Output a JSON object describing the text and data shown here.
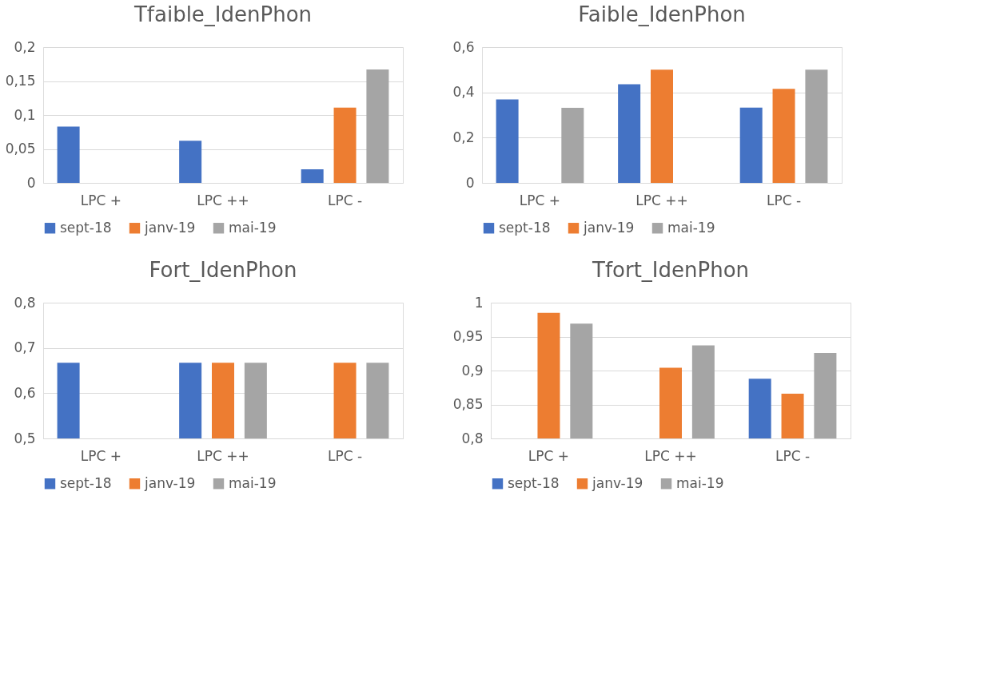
{
  "chart_data": [
    {
      "type": "bar",
      "title": "Tfaible_IdenPhon",
      "categories": [
        "LPC +",
        "LPC ++",
        "LPC -"
      ],
      "series": [
        {
          "name": "sept-18",
          "color": "#4472c4",
          "values": [
            0.083,
            0.062,
            0.02
          ]
        },
        {
          "name": "janv-19",
          "color": "#ed7d31",
          "values": [
            null,
            null,
            0.111
          ]
        },
        {
          "name": "mai-19",
          "color": "#a5a5a5",
          "values": [
            null,
            null,
            0.167
          ]
        }
      ],
      "ylim": [
        0,
        0.2
      ],
      "yticks": [
        {
          "value": 0,
          "label": "0"
        },
        {
          "value": 0.05,
          "label": "0,05"
        },
        {
          "value": 0.1,
          "label": "0,1"
        },
        {
          "value": 0.15,
          "label": "0,15"
        },
        {
          "value": 0.2,
          "label": "0,2"
        }
      ],
      "grid": "y",
      "legend": "bottom"
    },
    {
      "type": "bar",
      "title": "Faible_IdenPhon",
      "categories": [
        "LPC +",
        "LPC ++",
        "LPC -"
      ],
      "series": [
        {
          "name": "sept-18",
          "color": "#4472c4",
          "values": [
            0.369,
            0.436,
            0.333
          ]
        },
        {
          "name": "janv-19",
          "color": "#ed7d31",
          "values": [
            null,
            0.5,
            0.416
          ]
        },
        {
          "name": "mai-19",
          "color": "#a5a5a5",
          "values": [
            0.332,
            null,
            0.5
          ]
        }
      ],
      "ylim": [
        0,
        0.6
      ],
      "yticks": [
        {
          "value": 0,
          "label": "0"
        },
        {
          "value": 0.2,
          "label": "0,2"
        },
        {
          "value": 0.4,
          "label": "0,4"
        },
        {
          "value": 0.6,
          "label": "0,6"
        }
      ],
      "grid": "y",
      "legend": "bottom"
    },
    {
      "type": "bar",
      "title": "Fort_IdenPhon",
      "categories": [
        "LPC +",
        "LPC ++",
        "LPC -"
      ],
      "series": [
        {
          "name": "sept-18",
          "color": "#4472c4",
          "values": [
            0.667,
            0.667,
            null
          ]
        },
        {
          "name": "janv-19",
          "color": "#ed7d31",
          "values": [
            null,
            0.667,
            0.667
          ]
        },
        {
          "name": "mai-19",
          "color": "#a5a5a5",
          "values": [
            null,
            0.667,
            0.667
          ]
        }
      ],
      "ylim": [
        0.5,
        0.8
      ],
      "yticks": [
        {
          "value": 0.5,
          "label": "0,5"
        },
        {
          "value": 0.6,
          "label": "0,6"
        },
        {
          "value": 0.7,
          "label": "0,7"
        },
        {
          "value": 0.8,
          "label": "0,8"
        }
      ],
      "grid": "y",
      "legend": "bottom"
    },
    {
      "type": "bar",
      "title": "Tfort_IdenPhon",
      "categories": [
        "LPC +",
        "LPC ++",
        "LPC -"
      ],
      "series": [
        {
          "name": "sept-18",
          "color": "#4472c4",
          "values": [
            null,
            null,
            0.888
          ]
        },
        {
          "name": "janv-19",
          "color": "#ed7d31",
          "values": [
            0.985,
            0.904,
            0.866
          ]
        },
        {
          "name": "mai-19",
          "color": "#a5a5a5",
          "values": [
            0.969,
            0.937,
            0.926
          ]
        }
      ],
      "ylim": [
        0.8,
        1
      ],
      "yticks": [
        {
          "value": 0.8,
          "label": "0,8"
        },
        {
          "value": 0.85,
          "label": "0,85"
        },
        {
          "value": 0.9,
          "label": "0,9"
        },
        {
          "value": 0.95,
          "label": "0,95"
        },
        {
          "value": 1,
          "label": "1"
        }
      ],
      "grid": "y",
      "legend": "bottom"
    }
  ]
}
